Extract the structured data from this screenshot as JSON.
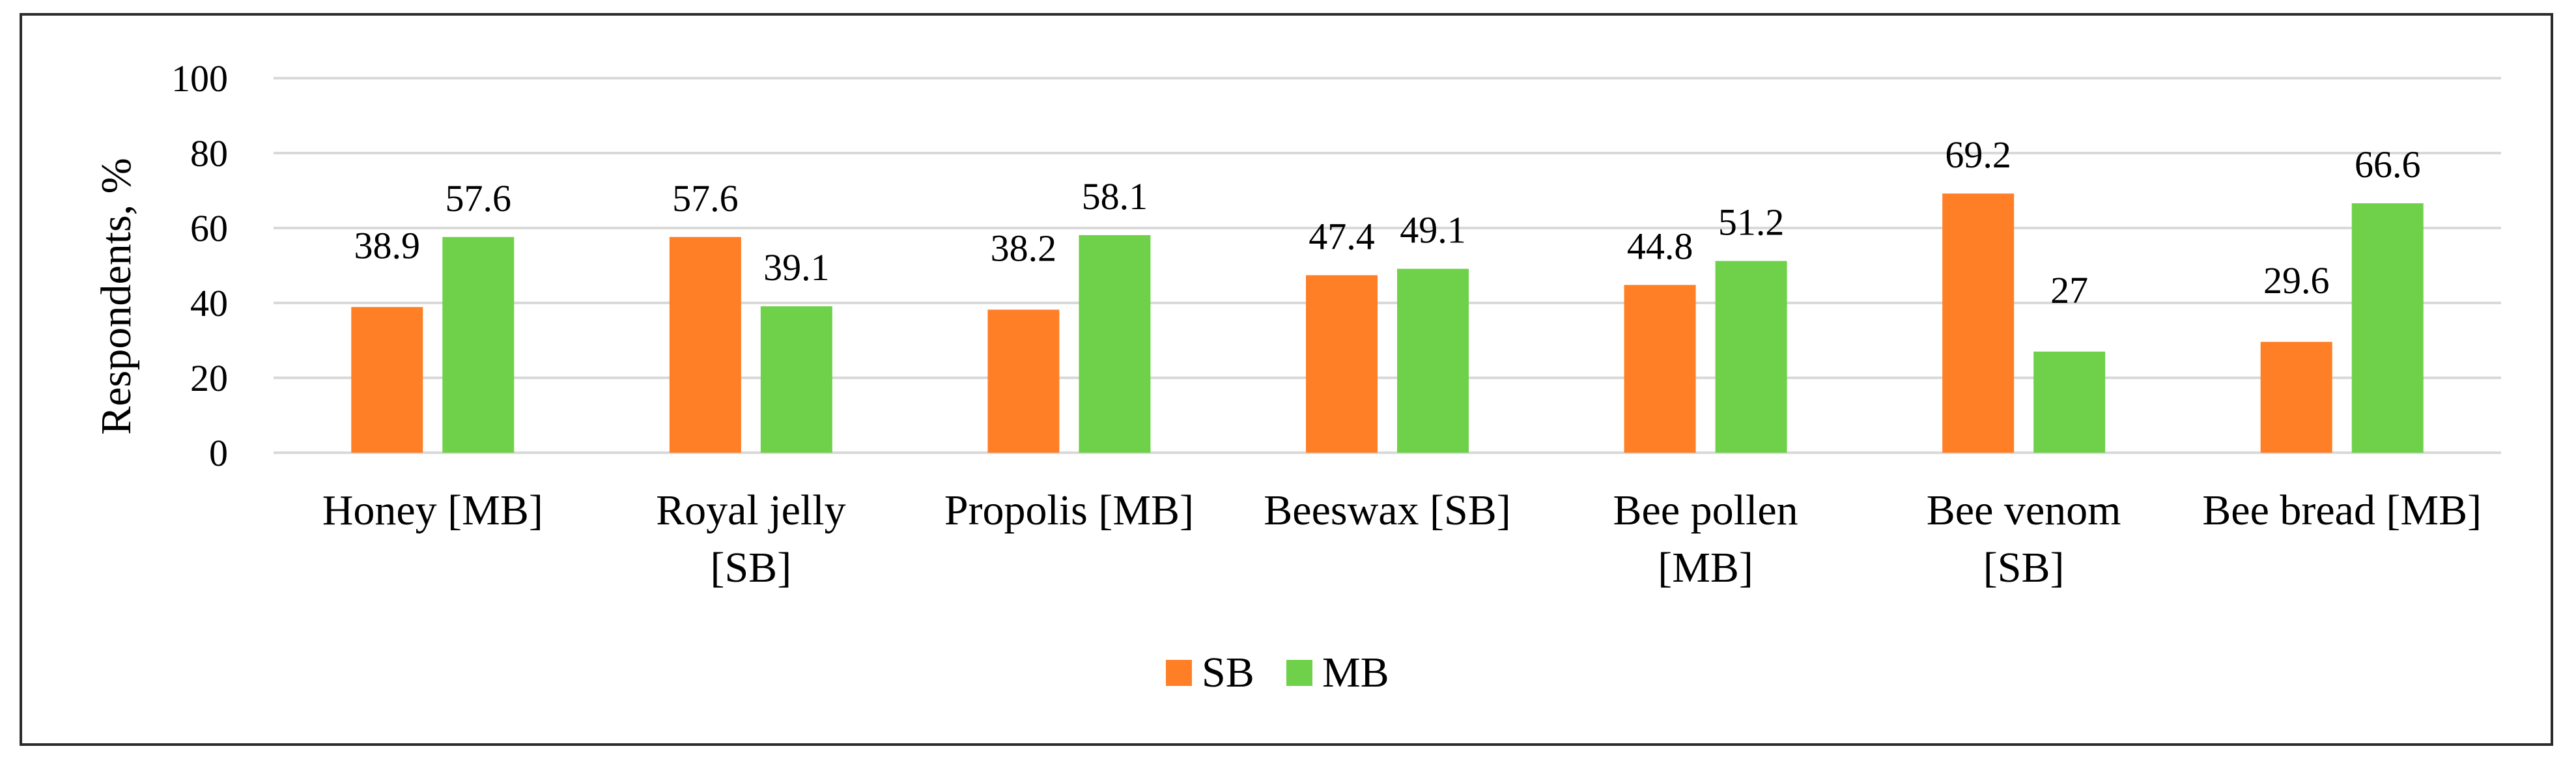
{
  "chart_data": {
    "type": "bar",
    "title": "",
    "xlabel": "",
    "ylabel": "Respondents, %",
    "ylim": [
      0,
      100
    ],
    "yticks": [
      0,
      20,
      40,
      60,
      80,
      100
    ],
    "grid": true,
    "legend_position": "bottom",
    "categories": [
      [
        "Honey [MB]"
      ],
      [
        "Royal jelly",
        "[SB]"
      ],
      [
        "Propolis [MB]"
      ],
      [
        "Beeswax [SB]"
      ],
      [
        "Bee pollen",
        "[MB]"
      ],
      [
        "Bee venom",
        "[SB]"
      ],
      [
        "Bee bread [MB]"
      ]
    ],
    "series": [
      {
        "name": "SB",
        "color": "#ff7f27",
        "values": [
          38.9,
          57.6,
          38.2,
          47.4,
          44.8,
          69.2,
          29.6
        ],
        "labels": [
          "38.9",
          "57.6",
          "38.2",
          "47.4",
          "44.8",
          "69.2",
          "29.6"
        ]
      },
      {
        "name": "MB",
        "color": "#6fd14a",
        "values": [
          57.6,
          39.1,
          58.1,
          49.1,
          51.2,
          27,
          66.6
        ],
        "labels": [
          "57.6",
          "39.1",
          "58.1",
          "49.1",
          "51.2",
          "27",
          "66.6"
        ]
      }
    ]
  }
}
